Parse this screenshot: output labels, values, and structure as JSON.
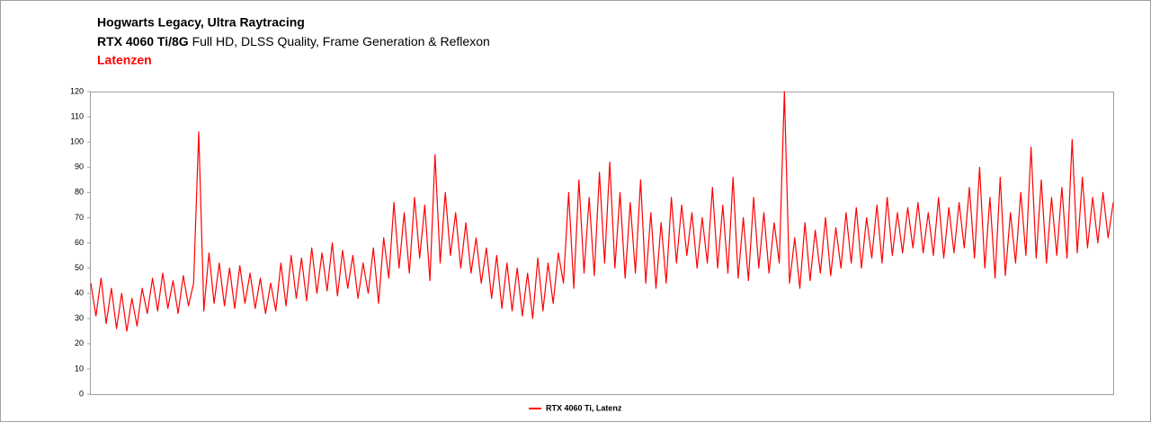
{
  "chart_data": {
    "type": "line",
    "title": "Hogwarts Legacy, Ultra Raytracing",
    "subtitle": [
      "RTX 4060 Ti/8G",
      "Full HD, DLSS Quality, Frame Generation & Reflexon"
    ],
    "annotation": "Latenzen",
    "ylim": [
      0,
      120
    ],
    "yticks": [
      0,
      10,
      20,
      30,
      40,
      50,
      60,
      70,
      80,
      90,
      100,
      110,
      120
    ],
    "grid": false,
    "legend": "bottom",
    "series": [
      {
        "name": "RTX 4060 Ti, Latenz",
        "color": "#ff0000",
        "values": [
          44,
          31,
          46,
          28,
          42,
          26,
          40,
          25,
          38,
          27,
          42,
          32,
          46,
          33,
          48,
          34,
          45,
          32,
          47,
          35,
          44,
          104,
          33,
          56,
          36,
          52,
          35,
          50,
          34,
          51,
          36,
          48,
          34,
          46,
          32,
          44,
          33,
          52,
          35,
          55,
          38,
          54,
          37,
          58,
          40,
          56,
          41,
          60,
          39,
          57,
          42,
          55,
          38,
          52,
          40,
          58,
          36,
          62,
          46,
          76,
          50,
          72,
          48,
          78,
          54,
          75,
          45,
          95,
          52,
          80,
          55,
          72,
          50,
          68,
          48,
          62,
          44,
          58,
          38,
          55,
          34,
          52,
          33,
          50,
          31,
          48,
          30,
          54,
          33,
          52,
          36,
          56,
          44,
          80,
          42,
          85,
          48,
          78,
          47,
          88,
          52,
          92,
          50,
          80,
          46,
          76,
          48,
          85,
          44,
          72,
          42,
          68,
          44,
          78,
          52,
          75,
          55,
          72,
          50,
          70,
          52,
          82,
          50,
          75,
          48,
          86,
          46,
          70,
          45,
          78,
          50,
          72,
          48,
          68,
          52,
          120,
          44,
          62,
          42,
          68,
          45,
          65,
          48,
          70,
          47,
          66,
          50,
          72,
          52,
          74,
          50,
          70,
          54,
          75,
          52,
          78,
          55,
          72,
          56,
          74,
          58,
          76,
          56,
          72,
          55,
          78,
          54,
          74,
          56,
          76,
          58,
          82,
          54,
          90,
          50,
          78,
          46,
          86,
          47,
          72,
          52,
          80,
          55,
          98,
          54,
          85,
          52,
          78,
          55,
          82,
          54,
          101,
          56,
          86,
          58,
          78,
          60,
          80,
          62,
          76
        ]
      }
    ]
  }
}
